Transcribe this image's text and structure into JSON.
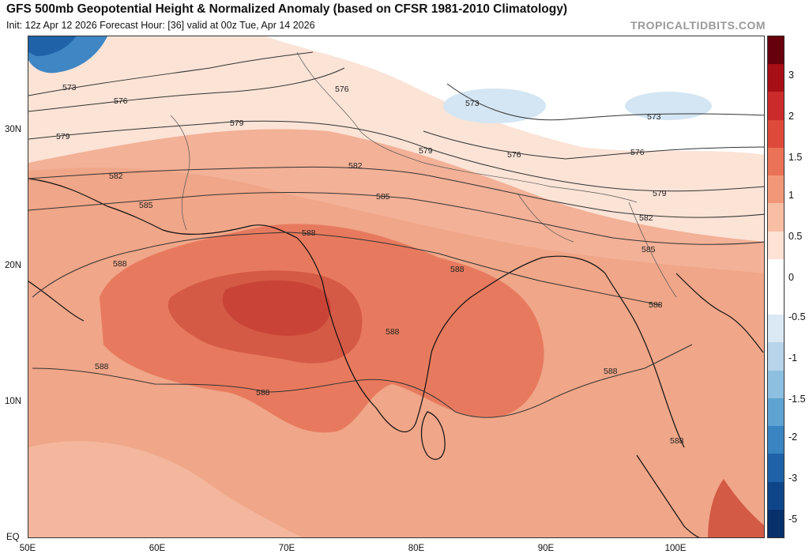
{
  "header": {
    "title": "GFS 500mb Geopotential Height & Normalized Anomaly (based on CFSR 1981-2010 Climatology)",
    "subtitle": "Init: 12z Apr 12 2026   Forecast Hour: [36]   valid at 00z Tue, Apr 14 2026",
    "brand": "TROPICALTIDBITS.COM"
  },
  "axes": {
    "lat_labels": [
      "30N",
      "20N",
      "10N",
      "EQ"
    ],
    "lon_labels": [
      "50E",
      "60E",
      "70E",
      "80E",
      "90E",
      "100E"
    ]
  },
  "colorbar": {
    "labels": [
      "3",
      "2",
      "1.5",
      "1",
      "0.5",
      "0",
      "-0.5",
      "-1",
      "-1.5",
      "-2",
      "-3",
      "-5"
    ],
    "colors": [
      "#67000d",
      "#a50f15",
      "#cb2b2b",
      "#de4a3a",
      "#ea7256",
      "#f29878",
      "#f7bea4",
      "#fde2d5",
      "#ffffff",
      "#ffffff",
      "#dbe9f5",
      "#b7d4ea",
      "#8dbfe0",
      "#5ea3d2",
      "#3a84c1",
      "#1f62a8",
      "#0e4589",
      "#08306b"
    ]
  },
  "contour_labels": [
    "573",
    "576",
    "579",
    "582",
    "585",
    "588"
  ],
  "colors": {
    "warm_light": "#fbe3d6",
    "warm_mid": "#f4b497",
    "warm_strong": "#e8795e",
    "warm_core": "#cc4a3a",
    "cold": "#3f86c4",
    "neutral": "#fdf2ec"
  }
}
